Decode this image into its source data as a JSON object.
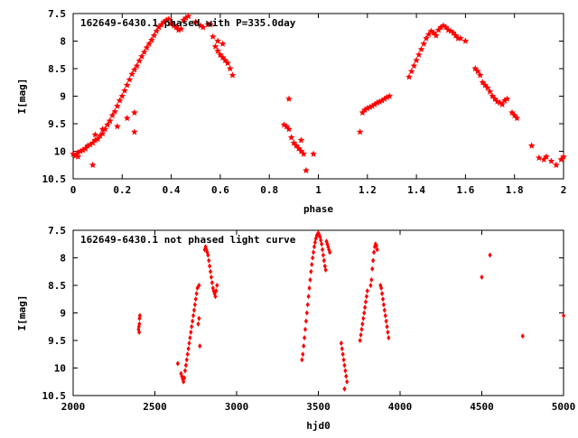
{
  "chart_data": [
    {
      "type": "scatter",
      "title": "162649-6430.1 phased with P=335.0day",
      "xlabel": "phase",
      "ylabel": "I[mag]",
      "xlim": [
        0,
        2
      ],
      "ylim": [
        10.5,
        7.5
      ],
      "y_inverted": true,
      "xticks": [
        0,
        0.2,
        0.4,
        0.6,
        0.8,
        1,
        1.2,
        1.4,
        1.6,
        1.8,
        2
      ],
      "xtick_labels": [
        "0",
        "0.2",
        "0.4",
        "0.6",
        "0.8",
        "1",
        "1.2",
        "1.4",
        "1.6",
        "1.8",
        "2"
      ],
      "yticks": [
        7.5,
        8,
        8.5,
        9,
        9.5,
        10,
        10.5
      ],
      "ytick_labels": [
        "7.5",
        "8",
        "8.5",
        "9",
        "9.5",
        "10",
        "10.5"
      ],
      "grid": false,
      "marker_color": "#ff0000",
      "marker": "filled-star",
      "series": [
        {
          "x": [
            0.0,
            0.01,
            0.02,
            0.03,
            0.04,
            0.05,
            0.06,
            0.07,
            0.08,
            0.09,
            0.1,
            0.11,
            0.12,
            0.13,
            0.14,
            0.15,
            0.16,
            0.17,
            0.18,
            0.19,
            0.2,
            0.21,
            0.22,
            0.23,
            0.24,
            0.25,
            0.26,
            0.27,
            0.28,
            0.29,
            0.3,
            0.31,
            0.32,
            0.33,
            0.34,
            0.35,
            0.36,
            0.37,
            0.38,
            0.39,
            0.4,
            0.41,
            0.42,
            0.43,
            0.44,
            0.45,
            0.46,
            0.47,
            0.02,
            0.05,
            0.09,
            0.12,
            0.15,
            0.18,
            0.22,
            0.25,
            0.08,
            0.25,
            0.5,
            0.52,
            0.53,
            0.55,
            0.56,
            0.57,
            0.58,
            0.59,
            0.6,
            0.61,
            0.62,
            0.63,
            0.64,
            0.65,
            0.59,
            0.61,
            0.86,
            0.87,
            0.88,
            0.89,
            0.9,
            0.91,
            0.92,
            0.93,
            0.94,
            0.95,
            0.88,
            0.93,
            0.98,
            1.17,
            1.18,
            1.19,
            1.2,
            1.21,
            1.22,
            1.23,
            1.24,
            1.25,
            1.26,
            1.27,
            1.28,
            1.29,
            1.37,
            1.38,
            1.39,
            1.4,
            1.41,
            1.42,
            1.43,
            1.44,
            1.45,
            1.46,
            1.47,
            1.48,
            1.49,
            1.5,
            1.51,
            1.52,
            1.53,
            1.54,
            1.55,
            1.56,
            1.57,
            1.58,
            1.6,
            1.64,
            1.65,
            1.66,
            1.67,
            1.68,
            1.69,
            1.7,
            1.71,
            1.72,
            1.73,
            1.74,
            1.75,
            1.76,
            1.77,
            1.79,
            1.8,
            1.81,
            1.87,
            1.9,
            1.92,
            1.93,
            1.95,
            1.97,
            1.99,
            2.0
          ],
          "y": [
            10.05,
            10.08,
            10.02,
            10.0,
            9.98,
            9.95,
            9.9,
            9.88,
            9.85,
            9.8,
            9.78,
            9.72,
            9.68,
            9.6,
            9.52,
            9.45,
            9.35,
            9.28,
            9.18,
            9.08,
            9.0,
            8.9,
            8.8,
            8.7,
            8.6,
            8.52,
            8.45,
            8.36,
            8.28,
            8.2,
            8.12,
            8.05,
            7.98,
            7.9,
            7.82,
            7.75,
            7.7,
            7.65,
            7.62,
            7.6,
            7.68,
            7.72,
            7.75,
            7.8,
            7.78,
            7.62,
            7.58,
            7.55,
            10.1,
            9.95,
            9.7,
            9.6,
            9.45,
            9.55,
            9.4,
            9.3,
            10.25,
            9.65,
            7.65,
            7.72,
            7.75,
            7.7,
            7.7,
            7.92,
            8.1,
            8.18,
            8.25,
            8.3,
            8.35,
            8.4,
            8.5,
            8.62,
            8.0,
            8.05,
            9.52,
            9.55,
            9.6,
            9.75,
            9.85,
            9.9,
            9.95,
            10.0,
            10.05,
            10.35,
            9.05,
            9.8,
            10.05,
            9.65,
            9.3,
            9.25,
            9.22,
            9.2,
            9.18,
            9.15,
            9.12,
            9.1,
            9.08,
            9.05,
            9.02,
            9.0,
            8.65,
            8.55,
            8.45,
            8.35,
            8.25,
            8.15,
            8.05,
            7.95,
            7.88,
            7.82,
            7.85,
            7.9,
            7.8,
            7.75,
            7.72,
            7.75,
            7.8,
            7.82,
            7.85,
            7.9,
            7.95,
            7.95,
            8.0,
            8.5,
            8.55,
            8.62,
            8.75,
            8.8,
            8.85,
            8.92,
            9.0,
            9.05,
            9.1,
            9.12,
            9.15,
            9.08,
            9.05,
            9.3,
            9.35,
            9.4,
            9.9,
            10.12,
            10.15,
            10.1,
            10.18,
            10.25,
            10.15,
            10.1
          ]
        }
      ]
    },
    {
      "type": "scatter",
      "title": "162649-6430.1 not phased light curve",
      "xlabel": "hjd0",
      "ylabel": "I[mag]",
      "xlim": [
        2000,
        5000
      ],
      "ylim": [
        10.5,
        7.5
      ],
      "y_inverted": true,
      "xticks": [
        2000,
        2500,
        3000,
        3500,
        4000,
        4500,
        5000
      ],
      "xtick_labels": [
        "2000",
        "2500",
        "3000",
        "3500",
        "4000",
        "4500",
        "5000"
      ],
      "yticks": [
        7.5,
        8,
        8.5,
        9,
        9.5,
        10,
        10.5
      ],
      "ytick_labels": [
        "7.5",
        "8",
        "8.5",
        "9",
        "9.5",
        "10",
        "10.5"
      ],
      "grid": false,
      "marker_color": "#ff0000",
      "marker": "filled-diamond",
      "series": [
        {
          "x": [
            2400,
            2402,
            2404,
            2406,
            2408,
            2405,
            2640,
            2660,
            2665,
            2670,
            2675,
            2680,
            2685,
            2690,
            2695,
            2700,
            2705,
            2710,
            2715,
            2720,
            2725,
            2730,
            2735,
            2740,
            2745,
            2750,
            2755,
            2760,
            2765,
            2770,
            2775,
            2770,
            2805,
            2810,
            2815,
            2820,
            2825,
            2830,
            2835,
            2840,
            2845,
            2850,
            2855,
            2860,
            2865,
            2870,
            2875,
            2880,
            3400,
            3405,
            3410,
            3415,
            3420,
            3425,
            3430,
            3435,
            3440,
            3445,
            3450,
            3455,
            3460,
            3465,
            3470,
            3475,
            3480,
            3485,
            3490,
            3495,
            3500,
            3505,
            3510,
            3515,
            3520,
            3525,
            3530,
            3535,
            3540,
            3545,
            3550,
            3555,
            3560,
            3565,
            3570,
            3640,
            3645,
            3650,
            3655,
            3660,
            3665,
            3670,
            3675,
            3660,
            3755,
            3760,
            3765,
            3770,
            3775,
            3780,
            3785,
            3790,
            3795,
            3800,
            3820,
            3825,
            3830,
            3835,
            3840,
            3845,
            3850,
            3855,
            3860,
            3880,
            3885,
            3890,
            3895,
            3900,
            3905,
            3910,
            3915,
            3920,
            3925,
            3930,
            4500,
            4550,
            4750,
            5000
          ],
          "y": [
            9.3,
            9.25,
            9.35,
            9.1,
            9.05,
            9.2,
            9.92,
            10.1,
            10.15,
            10.2,
            10.25,
            10.18,
            10.05,
            9.95,
            9.85,
            9.75,
            9.65,
            9.55,
            9.45,
            9.35,
            9.25,
            9.15,
            9.05,
            8.95,
            8.85,
            8.75,
            8.65,
            8.55,
            9.2,
            9.1,
            9.6,
            8.5,
            7.85,
            7.8,
            7.85,
            7.9,
            7.95,
            8.05,
            8.15,
            8.25,
            8.35,
            8.45,
            8.55,
            8.6,
            8.65,
            8.7,
            8.6,
            8.5,
            9.85,
            9.75,
            9.6,
            9.45,
            9.3,
            9.15,
            9.0,
            8.85,
            8.7,
            8.55,
            8.4,
            8.25,
            8.12,
            8.0,
            7.9,
            7.8,
            7.72,
            7.65,
            7.6,
            7.57,
            7.55,
            7.58,
            7.62,
            7.68,
            7.75,
            7.85,
            7.95,
            8.05,
            8.15,
            8.22,
            7.7,
            7.75,
            7.8,
            7.85,
            7.9,
            9.55,
            9.65,
            9.75,
            9.85,
            9.95,
            10.05,
            10.15,
            10.25,
            10.38,
            9.5,
            9.4,
            9.3,
            9.2,
            9.1,
            9.0,
            8.9,
            8.8,
            8.7,
            8.6,
            8.5,
            8.4,
            8.2,
            8.05,
            7.9,
            7.8,
            7.75,
            7.78,
            7.85,
            8.5,
            8.55,
            8.65,
            8.75,
            8.85,
            8.95,
            9.05,
            9.15,
            9.25,
            9.35,
            9.45,
            8.35,
            7.95,
            9.42,
            9.05
          ]
        }
      ]
    }
  ]
}
